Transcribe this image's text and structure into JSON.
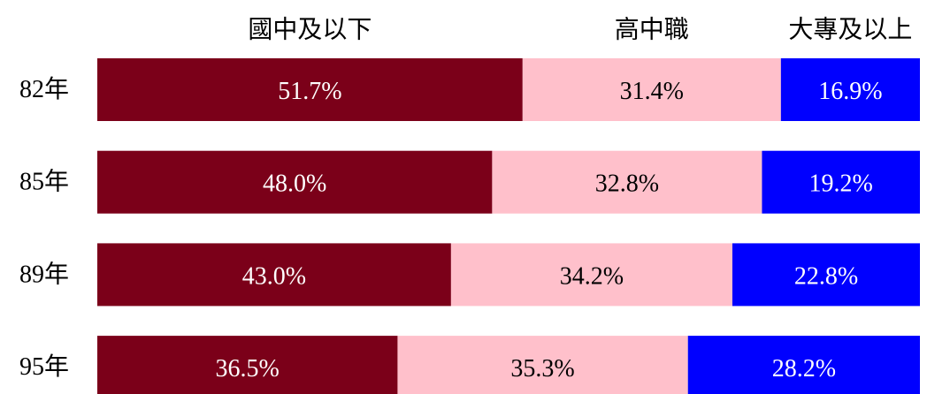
{
  "chart_data": {
    "type": "stacked-bar-horizontal",
    "categories": [
      "82年",
      "85年",
      "89年",
      "95年"
    ],
    "series": [
      {
        "name": "國中及以下",
        "color": "#7b0019",
        "values": [
          51.7,
          48.0,
          43.0,
          36.5
        ],
        "value_labels": [
          "51.7%",
          "48.0%",
          "43.0%",
          "36.5%"
        ]
      },
      {
        "name": "高中職",
        "color": "#ffc0cb",
        "values": [
          31.4,
          32.8,
          34.2,
          35.3
        ],
        "value_labels": [
          "31.4%",
          "32.8%",
          "34.2%",
          "35.3%"
        ]
      },
      {
        "name": "大專及以上",
        "color": "#0000ff",
        "values": [
          16.9,
          19.2,
          22.8,
          28.2
        ],
        "value_labels": [
          "16.9%",
          "19.2%",
          "22.8%",
          "28.2%"
        ]
      }
    ],
    "xlim": [
      0,
      100
    ]
  }
}
